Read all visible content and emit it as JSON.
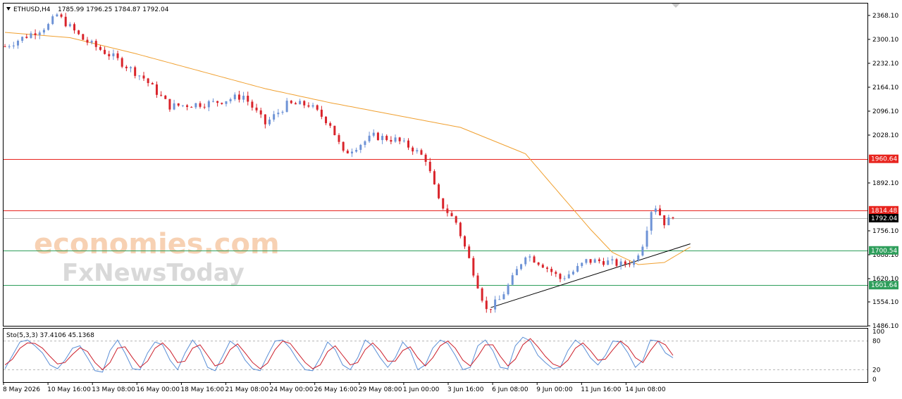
{
  "header": {
    "symbol": "ETHUSD,H4",
    "ohlc": "1785.99 1796.25 1784.87 1792.04"
  },
  "watermark": {
    "line1": "economies.com",
    "line2": "FxNewsToday"
  },
  "colors": {
    "bull": "#6e93d6",
    "bear": "#d9242b",
    "ma": "#f0a030",
    "resistance": "#e8241e",
    "support": "#2e9e5b",
    "current": "#000000",
    "stoch_main": "#5b8fd6",
    "stoch_signal": "#cc1e2a"
  },
  "chart_data": [
    {
      "type": "candlestick",
      "symbol": "ETHUSD",
      "timeframe": "H4",
      "ylim": [
        1486.1,
        2402.0
      ],
      "price_ticks": [
        "2368.10",
        "2300.10",
        "2232.10",
        "2164.10",
        "2096.10",
        "2028.10",
        "1892.10",
        "1756.10",
        "1688.10",
        "1620.10",
        "1554.10",
        "1486.10"
      ],
      "x_ticks": [
        "8 May 2026",
        "10 May 16:00",
        "13 May 08:00",
        "16 May 00:00",
        "18 May 16:00",
        "21 May 08:00",
        "24 May 00:00",
        "26 May 16:00",
        "29 May 08:00",
        "1 Jun 00:00",
        "3 Jun 16:00",
        "6 Jun 08:00",
        "9 Jun 00:00",
        "11 Jun 16:00",
        "14 Jun 08:00"
      ],
      "levels": [
        {
          "label": "1960.64",
          "value": 1960.64,
          "role": "resistance"
        },
        {
          "label": "1814.48",
          "value": 1814.48,
          "role": "resistance"
        },
        {
          "label": "1792.04",
          "value": 1792.04,
          "role": "current"
        },
        {
          "label": "1700.54",
          "value": 1700.54,
          "role": "support"
        },
        {
          "label": "1601.64",
          "value": 1601.64,
          "role": "support"
        }
      ],
      "trendline": [
        [
          112,
          1538
        ],
        [
          158,
          1719
        ]
      ],
      "moving_average_anchors": [
        [
          0,
          2320
        ],
        [
          15,
          2305
        ],
        [
          30,
          2260
        ],
        [
          45,
          2210
        ],
        [
          60,
          2160
        ],
        [
          75,
          2120
        ],
        [
          90,
          2085
        ],
        [
          105,
          2050
        ],
        [
          120,
          1975
        ],
        [
          128,
          1860
        ],
        [
          135,
          1760
        ],
        [
          140,
          1695
        ],
        [
          146,
          1660
        ],
        [
          152,
          1666
        ],
        [
          158,
          1710
        ]
      ],
      "price_anchors": [
        [
          0,
          2280
        ],
        [
          10,
          2340
        ],
        [
          12,
          2370
        ],
        [
          18,
          2300
        ],
        [
          25,
          2250
        ],
        [
          32,
          2190
        ],
        [
          38,
          2110
        ],
        [
          48,
          2120
        ],
        [
          55,
          2140
        ],
        [
          60,
          2060
        ],
        [
          65,
          2115
        ],
        [
          70,
          2115
        ],
        [
          75,
          2060
        ],
        [
          78,
          1975
        ],
        [
          85,
          2025
        ],
        [
          90,
          2015
        ],
        [
          94,
          1990
        ],
        [
          97,
          1960
        ],
        [
          100,
          1840
        ],
        [
          104,
          1780
        ],
        [
          108,
          1640
        ],
        [
          111,
          1530
        ],
        [
          114,
          1560
        ],
        [
          117,
          1620
        ],
        [
          120,
          1690
        ],
        [
          124,
          1660
        ],
        [
          128,
          1620
        ],
        [
          131,
          1640
        ],
        [
          134,
          1670
        ],
        [
          138,
          1670
        ],
        [
          142,
          1660
        ],
        [
          145,
          1670
        ],
        [
          147,
          1720
        ],
        [
          149,
          1815
        ],
        [
          150,
          1825
        ],
        [
          152,
          1780
        ],
        [
          154,
          1792
        ]
      ]
    },
    {
      "type": "line",
      "title": "Sto(5,3,3) 37.4106 45.1368",
      "ylim": [
        0,
        100
      ],
      "y_ticks": [
        "100",
        "80",
        "20",
        "0"
      ],
      "levels": [
        80,
        20
      ],
      "series": [
        {
          "role": "main",
          "values": [
            22,
            50,
            78,
            82,
            70,
            55,
            30,
            22,
            40,
            65,
            70,
            45,
            18,
            15,
            60,
            82,
            55,
            22,
            20,
            55,
            78,
            72,
            40,
            20,
            55,
            82,
            62,
            25,
            18,
            48,
            80,
            68,
            40,
            22,
            18,
            50,
            80,
            82,
            65,
            40,
            20,
            18,
            45,
            78,
            62,
            30,
            20,
            45,
            82,
            70,
            45,
            25,
            45,
            78,
            60,
            20,
            30,
            65,
            82,
            75,
            50,
            20,
            25,
            70,
            82,
            60,
            25,
            22,
            70,
            88,
            80,
            50,
            35,
            22,
            25,
            60,
            82,
            70,
            45,
            30,
            50,
            80,
            78,
            55,
            25,
            40,
            82,
            80,
            55,
            45
          ]
        },
        {
          "role": "signal",
          "values": [
            30,
            42,
            65,
            76,
            75,
            65,
            48,
            32,
            35,
            52,
            66,
            58,
            35,
            20,
            35,
            65,
            68,
            45,
            25,
            38,
            65,
            76,
            60,
            35,
            38,
            65,
            72,
            50,
            28,
            34,
            62,
            74,
            55,
            35,
            22,
            34,
            62,
            80,
            75,
            55,
            35,
            22,
            30,
            58,
            70,
            50,
            30,
            35,
            62,
            76,
            60,
            38,
            38,
            60,
            68,
            45,
            28,
            45,
            70,
            80,
            65,
            40,
            28,
            48,
            72,
            72,
            48,
            28,
            42,
            72,
            85,
            68,
            48,
            32,
            26,
            40,
            65,
            76,
            60,
            40,
            42,
            62,
            80,
            68,
            45,
            35,
            60,
            80,
            72,
            50
          ]
        }
      ]
    }
  ]
}
